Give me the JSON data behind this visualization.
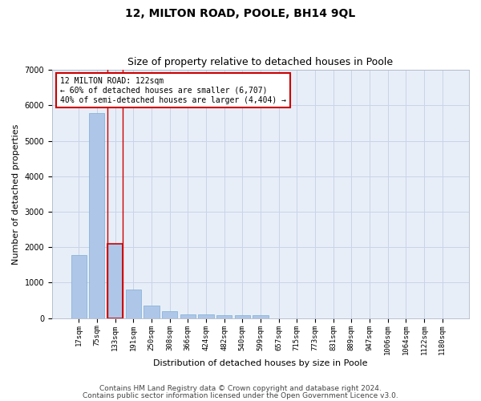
{
  "title1": "12, MILTON ROAD, POOLE, BH14 9QL",
  "title2": "Size of property relative to detached houses in Poole",
  "xlabel": "Distribution of detached houses by size in Poole",
  "ylabel": "Number of detached properties",
  "categories": [
    "17sqm",
    "75sqm",
    "133sqm",
    "191sqm",
    "250sqm",
    "308sqm",
    "366sqm",
    "424sqm",
    "482sqm",
    "540sqm",
    "599sqm",
    "657sqm",
    "715sqm",
    "773sqm",
    "831sqm",
    "889sqm",
    "947sqm",
    "1006sqm",
    "1064sqm",
    "1122sqm",
    "1180sqm"
  ],
  "values": [
    1780,
    5780,
    2090,
    800,
    345,
    200,
    115,
    110,
    90,
    80,
    75,
    0,
    0,
    0,
    0,
    0,
    0,
    0,
    0,
    0,
    0
  ],
  "bar_color": "#aec6e8",
  "bar_edge_color": "#7aafd4",
  "highlight_color": "#cc0000",
  "highlight_index": 2,
  "annotation_text": "12 MILTON ROAD: 122sqm\n← 60% of detached houses are smaller (6,707)\n40% of semi-detached houses are larger (4,404) →",
  "annotation_box_color": "#ffffff",
  "annotation_box_edge_color": "#cc0000",
  "ylim": [
    0,
    7000
  ],
  "yticks": [
    0,
    1000,
    2000,
    3000,
    4000,
    5000,
    6000,
    7000
  ],
  "grid_color": "#c8d4e8",
  "background_color": "#e8eef8",
  "footer1": "Contains HM Land Registry data © Crown copyright and database right 2024.",
  "footer2": "Contains public sector information licensed under the Open Government Licence v3.0.",
  "title1_fontsize": 10,
  "title2_fontsize": 9,
  "annotation_fontsize": 7,
  "footer_fontsize": 6.5,
  "tick_fontsize": 6.5,
  "ylabel_fontsize": 8,
  "xlabel_fontsize": 8
}
